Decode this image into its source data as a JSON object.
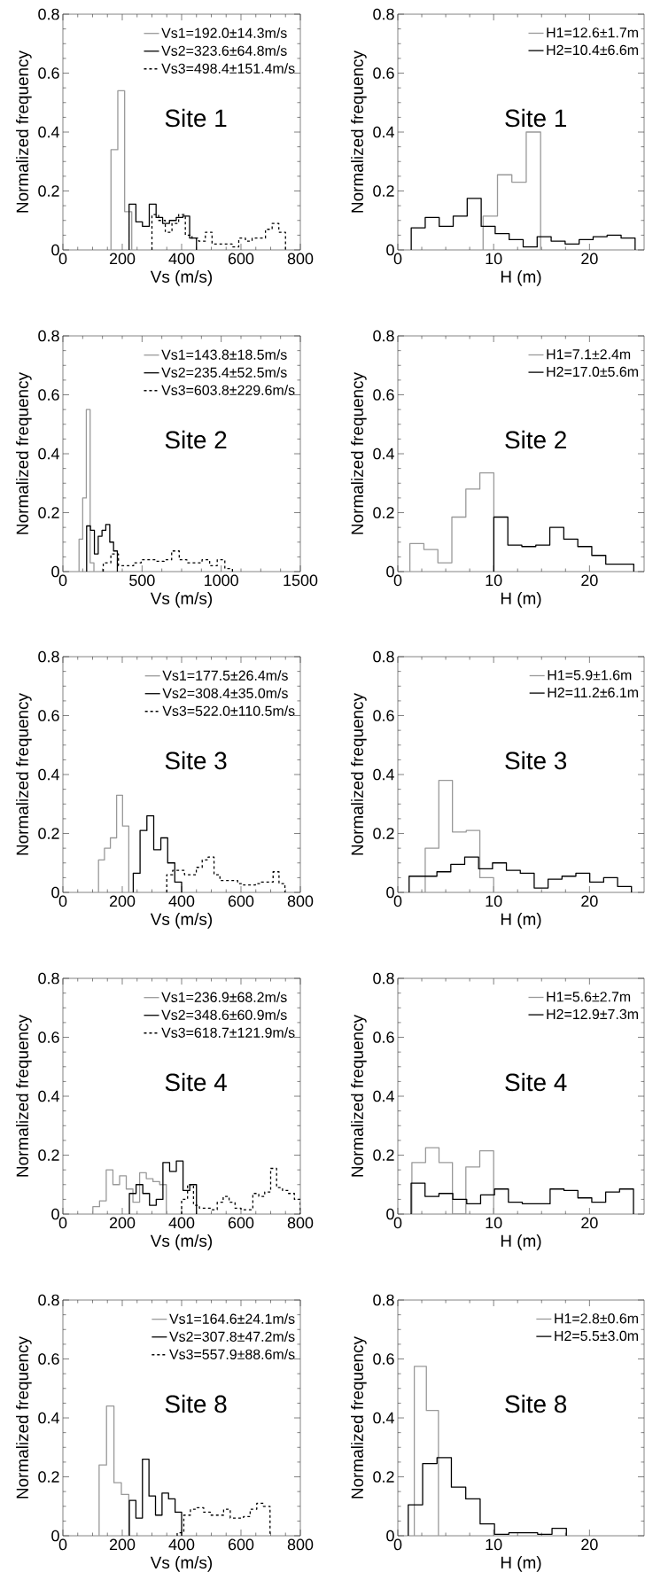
{
  "chart_data": [
    {
      "type": "step",
      "xlabel": "Vs (m/s)",
      "ylabel": "Normalized frequency",
      "xlim": [
        0,
        800
      ],
      "xticks": [
        0,
        200,
        400,
        600,
        800
      ],
      "ylim": [
        0,
        0.8
      ],
      "yticks": [
        0,
        0.2,
        0.4,
        0.6,
        0.8
      ],
      "legend": "top right",
      "annotations": [
        "Site 1"
      ],
      "series": [
        {
          "name": "Vs1=192.0±14.3m/s",
          "color": "#999999",
          "line_style": "solid",
          "x": [
            162,
            162,
            185,
            208,
            232
          ],
          "values": [
            0,
            0.34,
            0.54,
            0.13,
            0
          ]
        },
        {
          "name": "Vs2=323.6±64.8m/s",
          "color": "#000000",
          "line_style": "solid",
          "x": [
            223,
            223,
            246,
            268,
            291,
            314,
            336,
            359,
            382,
            404,
            427,
            450
          ],
          "values": [
            0,
            0.155,
            0.095,
            0.08,
            0.155,
            0.11,
            0.09,
            0.1,
            0.11,
            0.115,
            0.04,
            0
          ]
        },
        {
          "name": "Vs3=498.4±151.4m/s",
          "color": "#000000",
          "line_style": "dashed",
          "x": [
            300,
            300,
            322.5,
            345,
            367.5,
            390,
            412.5,
            435,
            457.5,
            480,
            502.5,
            525,
            547.5,
            570,
            592.5,
            615,
            637.5,
            660,
            682.5,
            705,
            727.5,
            750
          ],
          "values": [
            0,
            0.12,
            0.1,
            0.06,
            0.09,
            0.12,
            0.05,
            0.04,
            0.03,
            0.06,
            0.02,
            0.02,
            0.02,
            0.01,
            0.04,
            0.03,
            0.04,
            0.04,
            0.07,
            0.09,
            0.06,
            0
          ]
        }
      ]
    },
    {
      "type": "step",
      "xlabel": "H (m)",
      "ylabel": "Normalized frequency",
      "xlim": [
        0,
        25.7
      ],
      "xticks": [
        0,
        10,
        20
      ],
      "ylim": [
        0,
        0.8
      ],
      "yticks": [
        0,
        0.2,
        0.4,
        0.6,
        0.8
      ],
      "legend": "top right",
      "annotations": [
        "Site 1"
      ],
      "series": [
        {
          "name": "H1=12.6±1.7m",
          "color": "#999999",
          "line_style": "solid",
          "x": [
            8.9,
            8.9,
            10.4,
            11.9,
            13.4,
            14.9
          ],
          "values": [
            0,
            0.115,
            0.255,
            0.23,
            0.4,
            0
          ]
        },
        {
          "name": "H2=10.4±6.6m",
          "color": "#000000",
          "line_style": "solid",
          "x": [
            1.4,
            1.4,
            2.86,
            4.32,
            5.78,
            7.24,
            8.7,
            10.16,
            11.62,
            13.08,
            14.54,
            16,
            17.46,
            18.92,
            20.38,
            21.84,
            23.3,
            24.76
          ],
          "values": [
            0,
            0.075,
            0.11,
            0.08,
            0.115,
            0.175,
            0.08,
            0.055,
            0.035,
            0.01,
            0.045,
            0.03,
            0.02,
            0.035,
            0.045,
            0.05,
            0.04,
            0
          ]
        }
      ]
    },
    {
      "type": "step",
      "xlabel": "Vs (m/s)",
      "ylabel": "Normalized frequency",
      "xlim": [
        0,
        1500
      ],
      "xticks": [
        0,
        500,
        1000,
        1500
      ],
      "ylim": [
        0,
        0.8
      ],
      "yticks": [
        0,
        0.2,
        0.4,
        0.6,
        0.8
      ],
      "legend": "top right",
      "annotations": [
        "Site 2"
      ],
      "series": [
        {
          "name": "Vs1=143.8±18.5m/s",
          "color": "#999999",
          "line_style": "solid",
          "x": [
            102,
            102,
            125,
            148,
            172,
            196
          ],
          "values": [
            0,
            0.11,
            0.25,
            0.55,
            0.03,
            0
          ]
        },
        {
          "name": "Vs2=235.4±52.5m/s",
          "color": "#000000",
          "line_style": "solid",
          "x": [
            150,
            150,
            174,
            199,
            223,
            247,
            271,
            296,
            320,
            344
          ],
          "values": [
            0,
            0.155,
            0.14,
            0.06,
            0.12,
            0.14,
            0.16,
            0.1,
            0.07,
            0
          ]
        },
        {
          "name": "Vs3=603.8±229.6m/s",
          "color": "#000000",
          "line_style": "dashed",
          "x": [
            255,
            255,
            303,
            351,
            399,
            447,
            495,
            543,
            591,
            639,
            687,
            735,
            783,
            831,
            879,
            927,
            975,
            1023,
            1071
          ],
          "values": [
            0,
            0.03,
            0.06,
            0.02,
            0.02,
            0.03,
            0.04,
            0.04,
            0.035,
            0.04,
            0.07,
            0.04,
            0.03,
            0.03,
            0.04,
            0.02,
            0.04,
            0.01,
            0
          ]
        }
      ]
    },
    {
      "type": "step",
      "xlabel": "H (m)",
      "ylabel": "Normalized frequency",
      "xlim": [
        0,
        25.7
      ],
      "xticks": [
        0,
        10,
        20
      ],
      "ylim": [
        0,
        0.8
      ],
      "yticks": [
        0,
        0.2,
        0.4,
        0.6,
        0.8
      ],
      "legend": "top right",
      "annotations": [
        "Site 2"
      ],
      "series": [
        {
          "name": "H1=7.1±2.4m",
          "color": "#999999",
          "line_style": "solid",
          "x": [
            1.26,
            1.26,
            2.72,
            4.18,
            5.64,
            7.1,
            8.56,
            10.02
          ],
          "values": [
            0,
            0.095,
            0.075,
            0.03,
            0.185,
            0.28,
            0.335,
            0
          ]
        },
        {
          "name": "H2=17.0±5.6m",
          "color": "#000000",
          "line_style": "solid",
          "x": [
            10.02,
            10.02,
            11.48,
            12.94,
            14.4,
            15.86,
            17.32,
            18.78,
            20.24,
            21.7,
            23.16,
            24.62
          ],
          "values": [
            0,
            0.185,
            0.09,
            0.085,
            0.09,
            0.15,
            0.11,
            0.085,
            0.055,
            0.025,
            0.025,
            0
          ]
        }
      ]
    },
    {
      "type": "step",
      "xlabel": "Vs (m/s)",
      "ylabel": "Normalized frequency",
      "xlim": [
        0,
        800
      ],
      "xticks": [
        0,
        200,
        400,
        600,
        800
      ],
      "ylim": [
        0,
        0.8
      ],
      "yticks": [
        0,
        0.2,
        0.4,
        0.6,
        0.8
      ],
      "legend": "top right",
      "annotations": [
        "Site 3"
      ],
      "series": [
        {
          "name": "Vs1=177.5±26.4m/s",
          "color": "#999999",
          "line_style": "solid",
          "x": [
            120,
            120,
            140,
            160,
            181,
            201,
            222
          ],
          "values": [
            0,
            0.11,
            0.15,
            0.185,
            0.33,
            0.225,
            0
          ]
        },
        {
          "name": "Vs2=308.4±35.0m/s",
          "color": "#000000",
          "line_style": "solid",
          "x": [
            237,
            237,
            260,
            283,
            306,
            330,
            353,
            377,
            400
          ],
          "values": [
            0,
            0.065,
            0.21,
            0.26,
            0.145,
            0.185,
            0.1,
            0.035,
            0
          ]
        },
        {
          "name": "Vs3=522.0±110.5m/s",
          "color": "#000000",
          "line_style": "dashed",
          "x": [
            350,
            350,
            369.9,
            389.8,
            409.7,
            429.6,
            449.5,
            469.4,
            489.3,
            509.2,
            529.1,
            549,
            568.9,
            588.8,
            608.7,
            628.6,
            648.5,
            668.4,
            688.3,
            708.2,
            728.1,
            748
          ],
          "values": [
            0,
            0.06,
            0.075,
            0.075,
            0.06,
            0.06,
            0.085,
            0.11,
            0.12,
            0.06,
            0.04,
            0.04,
            0.04,
            0.03,
            0.025,
            0.025,
            0.03,
            0.035,
            0.035,
            0.07,
            0.03,
            0
          ]
        }
      ]
    },
    {
      "type": "step",
      "xlabel": "H (m)",
      "ylabel": "Normalized frequency",
      "xlim": [
        0,
        25.7
      ],
      "xticks": [
        0,
        10,
        20
      ],
      "ylim": [
        0,
        0.8
      ],
      "yticks": [
        0,
        0.2,
        0.4,
        0.6,
        0.8
      ],
      "legend": "top right",
      "annotations": [
        "Site 3"
      ],
      "series": [
        {
          "name": "H1=5.9±1.6m",
          "color": "#999999",
          "line_style": "solid",
          "x": [
            2.86,
            2.86,
            4.28,
            5.7,
            7.14,
            8.56,
            10.0
          ],
          "values": [
            0,
            0.15,
            0.38,
            0.205,
            0.21,
            0.05,
            0
          ]
        },
        {
          "name": "H2=11.2±6.1m",
          "color": "#000000",
          "line_style": "solid",
          "x": [
            1.18,
            1.18,
            2.63,
            4.08,
            5.53,
            6.98,
            8.43,
            9.88,
            11.33,
            12.78,
            14.23,
            15.68,
            17.13,
            18.58,
            20.03,
            21.48,
            22.93,
            24.38
          ],
          "values": [
            0,
            0.055,
            0.055,
            0.07,
            0.095,
            0.12,
            0.08,
            0.1,
            0.075,
            0.065,
            0.015,
            0.045,
            0.055,
            0.065,
            0.035,
            0.05,
            0.02,
            0
          ]
        }
      ]
    },
    {
      "type": "step",
      "xlabel": "Vs (m/s)",
      "ylabel": "Normalized frequency",
      "xlim": [
        0,
        800
      ],
      "xticks": [
        0,
        200,
        400,
        600,
        800
      ],
      "ylim": [
        0,
        0.8
      ],
      "yticks": [
        0,
        0.2,
        0.4,
        0.6,
        0.8
      ],
      "legend": "top right",
      "annotations": [
        "Site 4"
      ],
      "series": [
        {
          "name": "Vs1=236.9±68.2m/s",
          "color": "#999999",
          "line_style": "solid",
          "x": [
            101,
            101,
            123.5,
            146,
            168.5,
            191,
            213.5,
            236,
            258.5,
            281,
            303.5,
            326,
            348.5
          ],
          "values": [
            0,
            0.025,
            0.045,
            0.15,
            0.1,
            0.13,
            0.085,
            0.04,
            0.14,
            0.12,
            0.11,
            0.1,
            0
          ]
        },
        {
          "name": "Vs2=348.6±60.9m/s",
          "color": "#000000",
          "line_style": "solid",
          "x": [
            224,
            224,
            246.6,
            269.2,
            291.8,
            314.4,
            337,
            359.6,
            382.2,
            404.8,
            427.4,
            450
          ],
          "values": [
            0,
            0.07,
            0.1,
            0.07,
            0.03,
            0.05,
            0.175,
            0.145,
            0.18,
            0.08,
            0.1,
            0
          ]
        },
        {
          "name": "Vs3=618.7±121.9m/s",
          "color": "#000000",
          "line_style": "dashed",
          "x": [
            400,
            400,
            420,
            440,
            460,
            480,
            500,
            520,
            540,
            560,
            580,
            600,
            620,
            640,
            660,
            680,
            700,
            720,
            740,
            760,
            780,
            800
          ],
          "values": [
            0,
            0.05,
            0.1,
            0.03,
            0.02,
            0.02,
            0.015,
            0.04,
            0.06,
            0.04,
            0.02,
            0.015,
            0.015,
            0.07,
            0.06,
            0.075,
            0.155,
            0.09,
            0.08,
            0.07,
            0.05,
            0
          ]
        }
      ]
    },
    {
      "type": "step",
      "xlabel": "H (m)",
      "ylabel": "Normalized frequency",
      "xlim": [
        0,
        25.7
      ],
      "xticks": [
        0,
        10,
        20
      ],
      "ylim": [
        0,
        0.8
      ],
      "yticks": [
        0,
        0.2,
        0.4,
        0.6,
        0.8
      ],
      "legend": "top right",
      "annotations": [
        "Site 4"
      ],
      "series": [
        {
          "name": "H1=5.6±2.7m",
          "color": "#999999",
          "line_style": "solid",
          "x": [
            1.47,
            1.47,
            2.9,
            4.3,
            5.7,
            7.1,
            8.55,
            10.0
          ],
          "values": [
            0,
            0.175,
            0.225,
            0.175,
            0,
            0.16,
            0.215,
            0
          ]
        },
        {
          "name": "H2=12.9±7.3m",
          "color": "#000000",
          "line_style": "solid",
          "x": [
            1.39,
            1.39,
            2.84,
            4.29,
            5.74,
            7.19,
            8.64,
            10.09,
            11.54,
            12.99,
            14.44,
            15.89,
            17.34,
            18.79,
            20.24,
            21.69,
            23.14,
            24.59
          ],
          "values": [
            0,
            0.105,
            0.06,
            0.07,
            0.05,
            0.035,
            0.065,
            0.085,
            0.04,
            0.035,
            0.035,
            0.085,
            0.08,
            0.055,
            0.04,
            0.075,
            0.085,
            0
          ]
        }
      ]
    },
    {
      "type": "step",
      "xlabel": "Vs (m/s)",
      "ylabel": "Normalized frequency",
      "xlim": [
        0,
        800
      ],
      "xticks": [
        0,
        200,
        400,
        600,
        800
      ],
      "ylim": [
        0,
        0.8
      ],
      "yticks": [
        0,
        0.2,
        0.4,
        0.6,
        0.8
      ],
      "legend": "top right",
      "annotations": [
        "Site 8"
      ],
      "series": [
        {
          "name": "Vs1=164.6±24.1m/s",
          "color": "#999999",
          "line_style": "solid",
          "x": [
            122,
            122,
            147,
            172,
            197,
            222
          ],
          "values": [
            0,
            0.24,
            0.44,
            0.18,
            0.14,
            0
          ]
        },
        {
          "name": "Vs2=307.8±47.2m/s",
          "color": "#000000",
          "line_style": "solid",
          "x": [
            224,
            224,
            246,
            268,
            290,
            312,
            334,
            356,
            378,
            400
          ],
          "values": [
            0,
            0.12,
            0.06,
            0.26,
            0.135,
            0.07,
            0.145,
            0.125,
            0.08,
            0
          ]
        },
        {
          "name": "Vs3=557.9±88.6m/s",
          "color": "#000000",
          "line_style": "dashed",
          "x": [
            385,
            385,
            407.4,
            429.7,
            452.1,
            474.4,
            496.8,
            519.1,
            541.5,
            563.8,
            586.2,
            608.5,
            630.9,
            653.2,
            675.6,
            697.9
          ],
          "values": [
            0,
            0.01,
            0.07,
            0.09,
            0.095,
            0.08,
            0.07,
            0.07,
            0.09,
            0.06,
            0.06,
            0.065,
            0.09,
            0.11,
            0.1,
            0
          ]
        }
      ]
    },
    {
      "type": "step",
      "xlabel": "H (m)",
      "ylabel": "Normalized frequency",
      "xlim": [
        0,
        25.7
      ],
      "xticks": [
        0,
        10,
        20
      ],
      "ylim": [
        0,
        0.8
      ],
      "yticks": [
        0,
        0.2,
        0.4,
        0.6,
        0.8
      ],
      "legend": "top right",
      "annotations": [
        "Site 8"
      ],
      "series": [
        {
          "name": "H1=2.8±0.6m",
          "color": "#999999",
          "line_style": "solid",
          "x": [
            1.72,
            1.72,
            2.98,
            4.24
          ],
          "values": [
            0,
            0.575,
            0.425,
            0
          ]
        },
        {
          "name": "H2=5.5±3.0m",
          "color": "#000000",
          "line_style": "solid",
          "x": [
            1.09,
            1.09,
            2.59,
            4.09,
            5.59,
            7.09,
            8.59,
            10.09,
            11.59,
            13.09,
            14.59,
            16.09,
            17.59
          ],
          "values": [
            0,
            0.105,
            0.245,
            0.265,
            0.165,
            0.125,
            0.04,
            0.005,
            0.01,
            0.01,
            0.005,
            0.025,
            0
          ]
        }
      ]
    }
  ]
}
